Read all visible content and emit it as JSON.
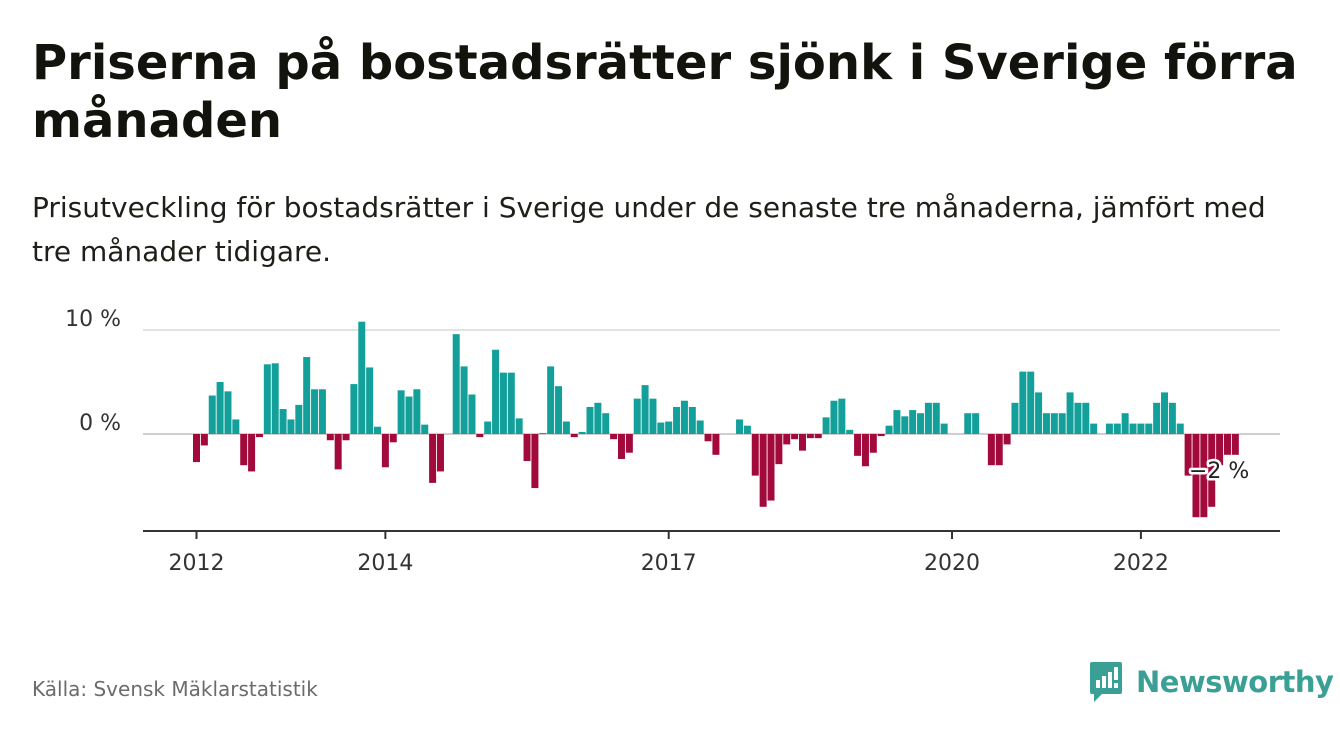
{
  "title": "Priserna på bostadsrätter sjönk i Sverige förra månaden",
  "subtitle": "Prisutveckling för bostadsrätter i Sverige under de senaste tre månaderna, jämfört med tre månader tidigare.",
  "source": "Källa: Svensk Mäklarstatistik",
  "brand": {
    "name": "Newsworthy",
    "icon": "newsworthy-logo-icon",
    "color": "#3a9f95"
  },
  "colors": {
    "positive": "#14a09a",
    "negative": "#a30a3c",
    "gridline": "#d9d9d9",
    "axis": "#333333"
  },
  "chart_data": {
    "type": "bar",
    "title": "Priserna på bostadsrätter sjönk i Sverige förra månaden",
    "xlabel": "",
    "ylabel": "",
    "unit": "%",
    "grid": true,
    "ylim": [
      -9,
      10
    ],
    "x_start": "2012-01",
    "x_ticks": [
      "2012",
      "2014",
      "2017",
      "2020",
      "2022"
    ],
    "y_ticks": [
      {
        "value": 10,
        "label": "10 %"
      },
      {
        "value": 0,
        "label": "0 %"
      }
    ],
    "values": [
      -2.7,
      -1.1,
      3.7,
      5.0,
      4.1,
      1.4,
      -3.0,
      -3.6,
      -0.3,
      6.7,
      6.8,
      2.4,
      1.4,
      2.8,
      7.4,
      4.3,
      4.3,
      -0.6,
      -3.4,
      -0.6,
      4.8,
      10.8,
      6.4,
      0.7,
      -3.2,
      -0.8,
      4.2,
      3.6,
      4.3,
      0.9,
      -4.7,
      -3.6,
      0.0,
      9.6,
      6.5,
      3.8,
      -0.3,
      1.2,
      8.1,
      5.9,
      5.9,
      1.5,
      -2.6,
      -5.2,
      0.1,
      6.5,
      4.6,
      1.2,
      -0.3,
      0.2,
      2.6,
      3.0,
      2.0,
      -0.5,
      -2.4,
      -1.8,
      3.4,
      4.7,
      3.4,
      1.1,
      1.2,
      2.6,
      3.2,
      2.6,
      1.3,
      -0.7,
      -2.0,
      0.0,
      0.0,
      1.4,
      0.8,
      -4.0,
      -7.0,
      -6.4,
      -2.9,
      -1.0,
      -0.5,
      -1.6,
      -0.4,
      -0.4,
      1.6,
      3.2,
      3.4,
      0.4,
      -2.1,
      -3.1,
      -1.8,
      -0.2,
      0.8,
      2.3,
      1.7,
      2.3,
      2.0,
      3.0,
      3.0,
      1.0,
      0.0,
      0.0,
      2.0,
      2.0,
      0.0,
      -3.0,
      -3.0,
      -1.0,
      3.0,
      6.0,
      6.0,
      4.0,
      2.0,
      2.0,
      2.0,
      4.0,
      3.0,
      3.0,
      1.0,
      0.0,
      1.0,
      1.0,
      2.0,
      1.0,
      1.0,
      1.0,
      3.0,
      4.0,
      3.0,
      1.0,
      -4.0,
      -8.0,
      -8.0,
      -7.0,
      -3.0,
      -2.0,
      -2.0
    ],
    "annotation": {
      "label": "−2 %",
      "value": -2
    }
  }
}
